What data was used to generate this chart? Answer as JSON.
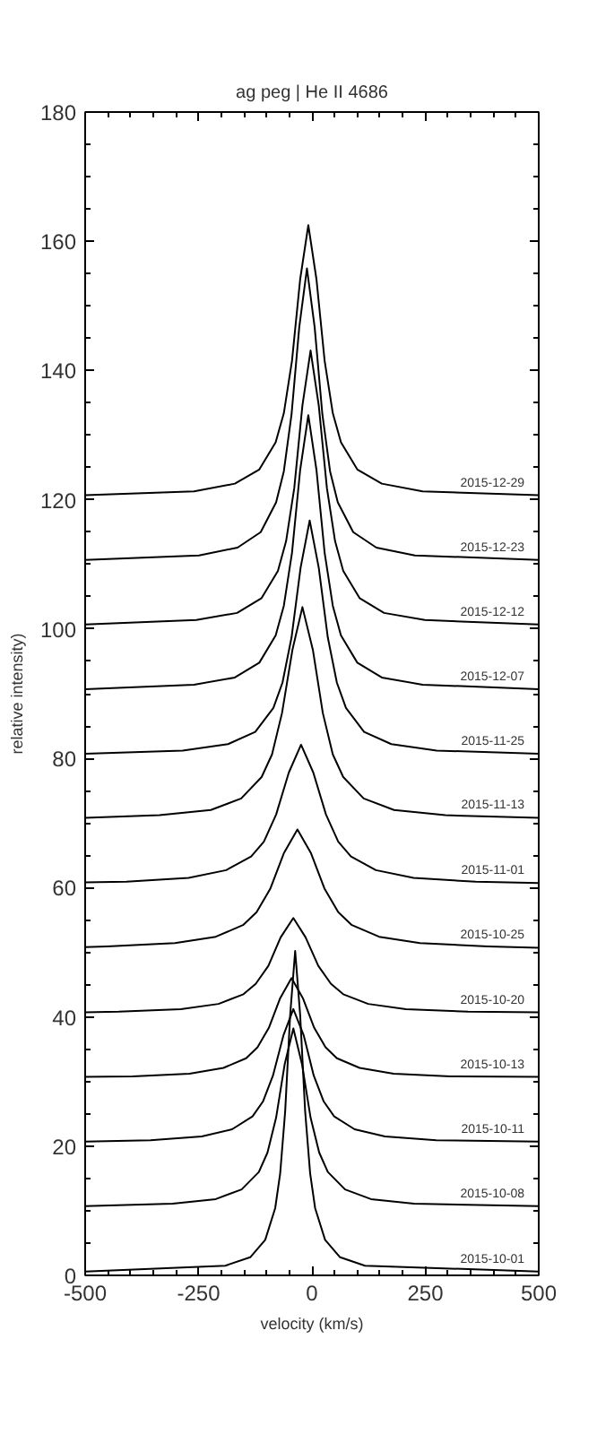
{
  "chart_data": {
    "type": "line",
    "title": "ag peg | He II 4686",
    "xlabel": "velocity (km/s)",
    "ylabel": "relative intensity)",
    "xlim": [
      -500,
      500
    ],
    "ylim": [
      0,
      180
    ],
    "xticks": [
      -500,
      -250,
      0,
      250,
      500
    ],
    "yticks": [
      0,
      20,
      40,
      60,
      80,
      100,
      120,
      140,
      160,
      180
    ],
    "grid": false,
    "legend": "right",
    "series": [
      {
        "name": "2015-12-29",
        "color": "#000000",
        "x": [
          -500,
          -260,
          -170,
          -116,
          -80,
          -62,
          -44,
          -26,
          -8,
          10,
          28,
          46,
          64,
          100,
          154,
          244,
          500
        ],
        "values": [
          120.7,
          121.3,
          122.5,
          124.7,
          128.9,
          133.4,
          141.5,
          154.1,
          162.5,
          154.1,
          141.5,
          133.4,
          128.9,
          124.7,
          122.5,
          121.3,
          120.7
        ]
      },
      {
        "name": "2015-12-23",
        "color": "#000000",
        "x": [
          -500,
          -249,
          -164,
          -113,
          -79,
          -62,
          -45,
          -28,
          -11,
          6,
          23,
          40,
          57,
          91,
          142,
          227,
          500
        ],
        "values": [
          110.7,
          111.4,
          112.6,
          115.0,
          119.6,
          124.4,
          133.2,
          146.7,
          155.8,
          146.7,
          133.2,
          124.4,
          119.6,
          115.0,
          112.6,
          111.4,
          110.7
        ]
      },
      {
        "name": "2015-12-12",
        "color": "#000000",
        "x": [
          -500,
          -255,
          -165,
          -111,
          -75,
          -57,
          -39,
          -21,
          -3,
          15,
          33,
          51,
          69,
          105,
          159,
          249,
          500
        ],
        "values": [
          100.7,
          101.4,
          102.5,
          104.8,
          109.0,
          113.6,
          121.8,
          134.6,
          143.1,
          134.6,
          121.8,
          113.6,
          109.0,
          104.8,
          102.5,
          101.4,
          100.7
        ]
      },
      {
        "name": "2015-12-07",
        "color": "#000000",
        "x": [
          -500,
          -260,
          -170,
          -116,
          -80,
          -62,
          -44,
          -26,
          -8,
          10,
          28,
          46,
          64,
          100,
          154,
          244,
          500
        ],
        "values": [
          90.7,
          91.4,
          92.5,
          94.8,
          99.0,
          103.6,
          111.8,
          124.6,
          133.1,
          124.6,
          111.8,
          103.6,
          99.0,
          94.8,
          92.5,
          91.4,
          90.7
        ]
      },
      {
        "name": "2015-11-25",
        "color": "#000000",
        "x": [
          -500,
          -285,
          -185,
          -125,
          -85,
          -65,
          -45,
          -25,
          -5,
          15,
          35,
          55,
          75,
          115,
          175,
          275,
          500
        ],
        "values": [
          80.7,
          81.2,
          82.2,
          84.1,
          87.8,
          91.7,
          98.7,
          109.5,
          116.8,
          109.5,
          98.7,
          91.7,
          87.8,
          84.1,
          82.2,
          81.2,
          80.7
        ]
      },
      {
        "name": "2015-11-13",
        "color": "#000000",
        "x": [
          -500,
          -336,
          -223,
          -156,
          -111,
          -88,
          -66,
          -43,
          -21,
          2,
          24,
          46,
          69,
          114,
          181,
          294,
          500
        ],
        "values": [
          70.8,
          71.2,
          72.0,
          73.8,
          77.1,
          80.6,
          87.0,
          96.8,
          103.4,
          96.8,
          87.0,
          80.6,
          77.1,
          73.8,
          72.0,
          71.2,
          70.8
        ]
      },
      {
        "name": "2015-11-01",
        "color": "#000000",
        "x": [
          -500,
          -409,
          -272,
          -189,
          -134,
          -106,
          -79,
          -51,
          -24,
          3,
          31,
          58,
          86,
          141,
          224,
          361,
          500
        ],
        "values": [
          60.8,
          60.9,
          61.5,
          62.7,
          64.8,
          67.1,
          71.3,
          77.8,
          82.1,
          77.8,
          71.3,
          67.1,
          64.8,
          62.7,
          61.5,
          60.9,
          60.7
        ]
      },
      {
        "name": "2015-10-25",
        "color": "#000000",
        "x": [
          -500,
          -452,
          -302,
          -212,
          -152,
          -122,
          -92,
          -62,
          -32,
          -2,
          28,
          58,
          88,
          148,
          238,
          388,
          500
        ],
        "values": [
          50.8,
          50.9,
          51.4,
          52.4,
          54.2,
          56.2,
          59.8,
          65.3,
          69.0,
          65.3,
          59.8,
          56.2,
          54.2,
          52.4,
          51.4,
          50.9,
          50.7
        ]
      },
      {
        "name": "2015-10-20",
        "color": "#000000",
        "x": [
          -500,
          -426,
          -289,
          -206,
          -151,
          -124,
          -96,
          -69,
          -41,
          -14,
          14,
          42,
          69,
          124,
          207,
          344,
          500
        ],
        "values": [
          40.7,
          40.8,
          41.2,
          42.0,
          43.5,
          45.1,
          47.9,
          52.3,
          55.3,
          52.3,
          47.9,
          45.1,
          43.5,
          42.0,
          41.2,
          40.8,
          40.7
        ]
      },
      {
        "name": "2015-10-13",
        "color": "#000000",
        "x": [
          -500,
          -395,
          -270,
          -195,
          -145,
          -120,
          -95,
          -70,
          -45,
          -20,
          5,
          30,
          55,
          105,
          180,
          305,
          500
        ],
        "values": [
          30.7,
          30.8,
          31.2,
          32.1,
          33.6,
          35.3,
          38.3,
          42.9,
          46.0,
          42.9,
          38.3,
          35.3,
          33.6,
          32.1,
          31.2,
          30.8,
          30.7
        ]
      },
      {
        "name": "2015-10-11",
        "color": "#000000",
        "x": [
          -500,
          -356,
          -243,
          -176,
          -131,
          -108,
          -86,
          -63,
          -41,
          -18,
          4,
          26,
          49,
          94,
          161,
          274,
          500
        ],
        "values": [
          20.7,
          20.9,
          21.5,
          22.6,
          24.6,
          26.9,
          30.9,
          37.1,
          41.2,
          37.1,
          30.9,
          26.9,
          24.6,
          22.6,
          21.5,
          20.9,
          20.7
        ]
      },
      {
        "name": "2015-10-08",
        "color": "#000000",
        "x": [
          -500,
          -307,
          -212,
          -155,
          -117,
          -98,
          -79,
          -60,
          -41,
          -22,
          -3,
          16,
          35,
          73,
          130,
          225,
          500
        ],
        "values": [
          10.7,
          11.1,
          11.8,
          13.3,
          16.0,
          19.0,
          24.4,
          32.7,
          38.2,
          32.7,
          24.4,
          19.0,
          16.0,
          13.3,
          11.8,
          11.1,
          10.7
        ]
      },
      {
        "name": "2015-10-01",
        "color": "#000000",
        "x": [
          -500,
          -191,
          -136,
          -103,
          -81,
          -70,
          -59,
          -48,
          -37,
          -26,
          -15,
          -4,
          7,
          29,
          62,
          117,
          500
        ],
        "values": [
          0.6,
          1.5,
          2.8,
          5.5,
          10.4,
          15.8,
          25.4,
          40.3,
          50.2,
          40.3,
          25.4,
          15.8,
          10.4,
          5.5,
          2.8,
          1.5,
          0.6
        ]
      }
    ]
  }
}
